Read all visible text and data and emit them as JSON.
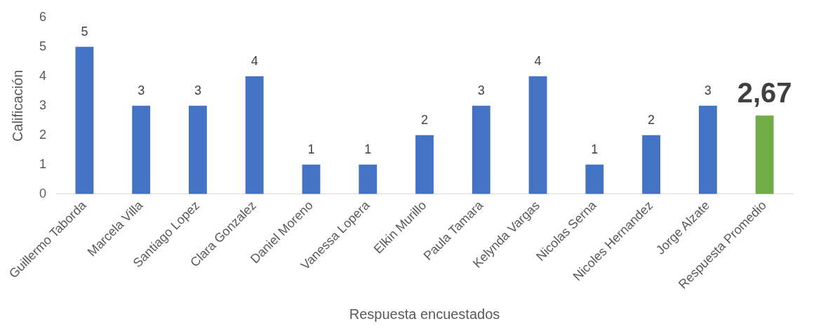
{
  "chart_data": {
    "type": "bar",
    "categories": [
      "Guillermo Taborda",
      "Marcela Villa",
      "Santiago Lopez",
      "Clara Gonzalez",
      "Daniel Moreno",
      "Vanessa Lopera",
      "Elkin Murillo",
      "Paula Tamara",
      "Kelynda Vargas",
      "Nicolas Serna",
      "Nicoles Hernandez",
      "Jorge Alzate",
      "Respuesta Promedio"
    ],
    "values": [
      5,
      3,
      3,
      4,
      1,
      1,
      2,
      3,
      4,
      1,
      2,
      3,
      2.67
    ],
    "value_labels": [
      "5",
      "3",
      "3",
      "4",
      "1",
      "1",
      "2",
      "3",
      "4",
      "1",
      "2",
      "3",
      "2,67"
    ],
    "colors": [
      "#4472c4",
      "#4472c4",
      "#4472c4",
      "#4472c4",
      "#4472c4",
      "#4472c4",
      "#4472c4",
      "#4472c4",
      "#4472c4",
      "#4472c4",
      "#4472c4",
      "#4472c4",
      "#70ad47"
    ],
    "xlabel": "Respuesta encuestados",
    "ylabel": "Calificación",
    "ylim": [
      0,
      6
    ],
    "yticks": [
      0,
      1,
      2,
      3,
      4,
      5,
      6
    ],
    "grid": false,
    "legend": false
  }
}
